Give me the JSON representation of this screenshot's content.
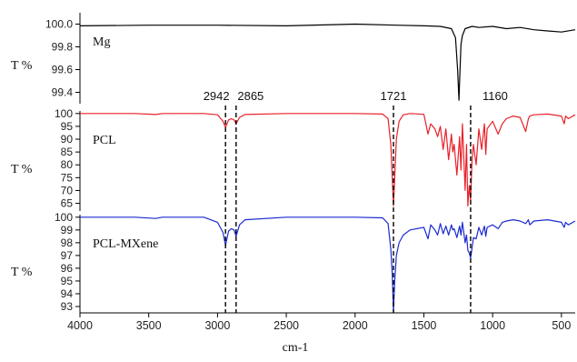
{
  "chart_data": {
    "type": "line",
    "title": "",
    "xlabel": "cm-1",
    "xlim": [
      4000,
      400
    ],
    "x_ticks": [
      4000,
      3500,
      3000,
      2500,
      2000,
      1500,
      1000,
      500
    ],
    "grid": false,
    "peaks": [
      {
        "x": 2942,
        "label": "2942"
      },
      {
        "x": 2865,
        "label": "2865"
      },
      {
        "x": 1721,
        "label": "1721"
      },
      {
        "x": 1160,
        "label": "1160"
      }
    ],
    "panels": [
      {
        "name": "Mg",
        "ylabel": "T %",
        "color": "#000000",
        "ylim": [
          99.3,
          100.1
        ],
        "y_ticks": [
          99.4,
          99.6,
          99.8,
          100.0
        ],
        "y_tick_labels": [
          "99.4",
          "99.6",
          "99.8",
          "100.0"
        ],
        "x": [
          4000,
          3500,
          3000,
          2500,
          2000,
          1700,
          1500,
          1380,
          1300,
          1270,
          1255,
          1245,
          1240,
          1230,
          1220,
          1200,
          1150,
          1100,
          1000,
          900,
          800,
          700,
          600,
          500,
          400
        ],
        "values": [
          99.985,
          99.99,
          99.99,
          99.985,
          100.0,
          99.99,
          99.985,
          99.98,
          99.96,
          99.88,
          99.6,
          99.33,
          99.5,
          99.82,
          99.9,
          99.96,
          99.98,
          99.97,
          99.98,
          99.96,
          99.97,
          99.95,
          99.94,
          99.93,
          99.95
        ]
      },
      {
        "name": "PCL",
        "ylabel": "T %",
        "color": "#e8202a",
        "ylim": [
          62,
          101
        ],
        "y_ticks": [
          65,
          70,
          75,
          80,
          85,
          90,
          95,
          100
        ],
        "y_tick_labels": [
          "65",
          "70",
          "75",
          "80",
          "85",
          "90",
          "95",
          "100"
        ],
        "x": [
          4000,
          3600,
          3450,
          3400,
          3100,
          3000,
          2960,
          2942,
          2920,
          2900,
          2880,
          2865,
          2840,
          2800,
          2500,
          2000,
          1800,
          1760,
          1740,
          1730,
          1721,
          1712,
          1700,
          1680,
          1650,
          1600,
          1500,
          1470,
          1450,
          1420,
          1400,
          1380,
          1360,
          1340,
          1320,
          1300,
          1290,
          1280,
          1260,
          1240,
          1230,
          1220,
          1200,
          1190,
          1180,
          1170,
          1160,
          1150,
          1140,
          1120,
          1100,
          1080,
          1060,
          1050,
          1040,
          1000,
          960,
          930,
          900,
          850,
          800,
          760,
          740,
          730,
          700,
          600,
          500,
          480,
          470,
          450,
          400
        ],
        "values": [
          100,
          100,
          99.6,
          100,
          100,
          99.5,
          97,
          94.5,
          97.5,
          98,
          97.5,
          96,
          98.5,
          99.6,
          100,
          100,
          99.8,
          98,
          88,
          75,
          64,
          75,
          90,
          97,
          99.5,
          100,
          99.7,
          92,
          96,
          94,
          91,
          95,
          86,
          94,
          82,
          92,
          85,
          88,
          76,
          91,
          78,
          96,
          70,
          88,
          64,
          72,
          66,
          82,
          88,
          80,
          94,
          86,
          96,
          84,
          94,
          97,
          92,
          96,
          98,
          99,
          98.5,
          93,
          98,
          99,
          99.5,
          99.8,
          99,
          96,
          99,
          98,
          99.5
        ]
      },
      {
        "name": "PCL-MXene",
        "ylabel": "T %",
        "color": "#1c2bd1",
        "ylim": [
          92.5,
          100.2
        ],
        "y_ticks": [
          93,
          94,
          95,
          96,
          97,
          98,
          99,
          100
        ],
        "y_tick_labels": [
          "93",
          "94",
          "95",
          "96",
          "97",
          "98",
          "99",
          "100"
        ],
        "x": [
          4000,
          3600,
          3450,
          3400,
          3100,
          3000,
          2960,
          2942,
          2920,
          2900,
          2880,
          2865,
          2840,
          2800,
          2500,
          2000,
          1800,
          1760,
          1740,
          1730,
          1721,
          1712,
          1700,
          1680,
          1650,
          1600,
          1500,
          1470,
          1450,
          1420,
          1400,
          1380,
          1360,
          1340,
          1320,
          1300,
          1290,
          1280,
          1260,
          1240,
          1230,
          1220,
          1200,
          1190,
          1180,
          1170,
          1160,
          1150,
          1140,
          1120,
          1100,
          1080,
          1060,
          1050,
          1040,
          1000,
          960,
          930,
          900,
          850,
          800,
          760,
          740,
          730,
          700,
          600,
          500,
          480,
          470,
          450,
          400
        ],
        "values": [
          100,
          100,
          99.9,
          100,
          100,
          99.6,
          98.8,
          97.8,
          98.9,
          99.1,
          99.0,
          98.5,
          99.4,
          99.8,
          100,
          100,
          99.95,
          99.5,
          97.5,
          95.5,
          92.6,
          95,
          97,
          98,
          98.6,
          99.0,
          99.2,
          98.3,
          99.4,
          99.0,
          98.6,
          99.5,
          98.7,
          99.3,
          98.6,
          99.4,
          99.0,
          99.1,
          98.4,
          99.3,
          98.6,
          99.6,
          98.0,
          98.6,
          97.4,
          97.2,
          96.8,
          97.6,
          98.4,
          98.3,
          99.2,
          98.6,
          99.3,
          98.5,
          99.2,
          99.4,
          99.1,
          99.6,
          99.7,
          99.8,
          99.7,
          99.5,
          99.8,
          99.4,
          99.7,
          99.8,
          99.6,
          99.2,
          99.6,
          99.4,
          99.7
        ]
      }
    ]
  }
}
